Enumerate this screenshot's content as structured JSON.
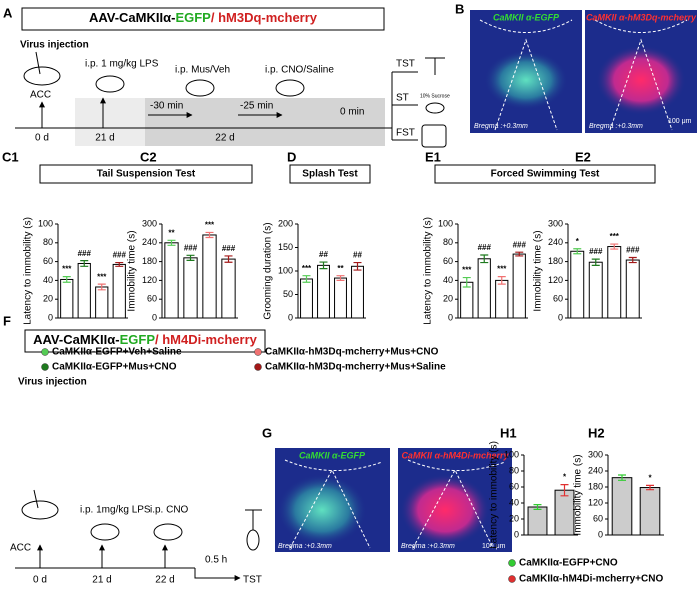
{
  "panel_labels": [
    "A",
    "B",
    "C1",
    "C2",
    "D",
    "E1",
    "E2",
    "F",
    "G",
    "H1",
    "H2"
  ],
  "panel_a": {
    "construct": [
      "AAV-CaMKIIα-",
      "EGFP",
      "/ hM3Dq-mcherry"
    ],
    "virus": "Virus injection",
    "region": "ACC",
    "steps": [
      "i.p. 1 mg/kg LPS",
      "i.p. Mus/Veh",
      "i.p. CNO/Saline"
    ],
    "times": [
      "-30 min",
      "-25 min",
      "0 min"
    ],
    "days": [
      "0 d",
      "21 d",
      "22 d"
    ],
    "tests": [
      "TST",
      "ST",
      "FST"
    ],
    "sucrose": "10% Sucrose"
  },
  "panel_b": {
    "images": [
      "CaMKII α-EGFP",
      "CaMKII α-hM3Dq-mcherry"
    ],
    "bregma": "Bregma :+0.3mm",
    "scale": "100 μm"
  },
  "test_titles": [
    "Tail Suspension Test",
    "Splash Test",
    "Forced Swimming Test"
  ],
  "legend_c": [
    {
      "name": "CaMKIIα-EGFP+Veh+Saline",
      "color": "#55cc55"
    },
    {
      "name": "CaMKIIα-EGFP+Mus+CNO",
      "color": "#1f7a1f"
    },
    {
      "name": "CaMKIIα-hM3Dq-mcherry+Mus+CNO",
      "color": "#f07272"
    },
    {
      "name": "CaMKIIα-hM3Dq-mcherry+Mus+Saline",
      "color": "#a31818"
    }
  ],
  "panel_f": {
    "construct": [
      "AAV-CaMKIIα-",
      "EGFP",
      "/ hM4Di-mcherry"
    ],
    "virus": "Virus injection",
    "region": "ACC",
    "steps": [
      "i.p. 1mg/kg LPS",
      "i.p. CNO"
    ],
    "time": "0.5 h",
    "test": "TST",
    "days": [
      "0 d",
      "21 d",
      "22 d"
    ]
  },
  "panel_g": {
    "images": [
      "CaMKII α-EGFP",
      "CaMKII α-hM4Di-mcherry"
    ],
    "bregma": "Bregma :+0.3mm",
    "scale": "100 μm"
  },
  "legend_h": [
    {
      "name": "CaMKIIα-EGFP+CNO",
      "color": "#33cc33"
    },
    {
      "name": "CaMKIIα-hM4Di-mcherry+CNO",
      "color": "#e03030"
    }
  ],
  "chart_data": [
    {
      "type": "bar",
      "legend": "legend_c",
      "ylabel": "Latency to immobility (s)",
      "ylim": [
        0,
        100
      ],
      "yticks": [
        0,
        20,
        40,
        60,
        80,
        100
      ],
      "bar_fill": "#ffffff",
      "values": [
        41,
        58,
        33,
        57
      ],
      "errors": [
        3,
        3,
        3,
        2
      ],
      "annotations": [
        "***",
        "###",
        "***",
        "###"
      ]
    },
    {
      "type": "bar",
      "legend": "legend_c",
      "ylabel": "Immobility time (s)",
      "ylim": [
        0,
        300
      ],
      "yticks": [
        0,
        60,
        120,
        180,
        240,
        300
      ],
      "bar_fill": "#ffffff",
      "values": [
        240,
        192,
        265,
        188
      ],
      "errors": [
        8,
        8,
        8,
        10
      ],
      "annotations": [
        "**",
        "###",
        "***",
        "###"
      ]
    },
    {
      "type": "bar",
      "legend": "legend_c",
      "ylabel": "Grooming duration (s)",
      "ylim": [
        0,
        200
      ],
      "yticks": [
        0,
        50,
        100,
        150,
        200
      ],
      "bar_fill": "#ffffff",
      "values": [
        83,
        112,
        85,
        110
      ],
      "errors": [
        7,
        7,
        5,
        8
      ],
      "annotations": [
        "***",
        "##",
        "**",
        "##"
      ]
    },
    {
      "type": "bar",
      "legend": "legend_c",
      "ylabel": "Latency to immobility (s)",
      "ylim": [
        0,
        100
      ],
      "yticks": [
        0,
        20,
        40,
        60,
        80,
        100
      ],
      "bar_fill": "#ffffff",
      "values": [
        38,
        63,
        40,
        68
      ],
      "errors": [
        5,
        4,
        4,
        2
      ],
      "annotations": [
        "***",
        "###",
        "***",
        "###"
      ]
    },
    {
      "type": "bar",
      "legend": "legend_c",
      "ylabel": "Immobility time (s)",
      "ylim": [
        0,
        300
      ],
      "yticks": [
        0,
        60,
        120,
        180,
        240,
        300
      ],
      "bar_fill": "#ffffff",
      "values": [
        213,
        178,
        228,
        185
      ],
      "errors": [
        8,
        10,
        8,
        8
      ],
      "annotations": [
        "*",
        "###",
        "***",
        "###"
      ]
    },
    {
      "type": "bar",
      "legend": "legend_h",
      "ylabel": "Latency to immobility (s)",
      "ylim": [
        0,
        100
      ],
      "yticks": [
        0,
        20,
        40,
        60,
        80,
        100
      ],
      "bar_fill": "#cccccc",
      "values": [
        35,
        56
      ],
      "errors": [
        3,
        7
      ],
      "annotations": [
        null,
        "*"
      ]
    },
    {
      "type": "bar",
      "legend": "legend_h",
      "ylabel": "Immobility time (s)",
      "ylim": [
        0,
        300
      ],
      "yticks": [
        0,
        60,
        120,
        180,
        240,
        300
      ],
      "bar_fill": "#cccccc",
      "values": [
        215,
        178
      ],
      "errors": [
        10,
        8
      ],
      "annotations": [
        null,
        "*"
      ]
    }
  ]
}
